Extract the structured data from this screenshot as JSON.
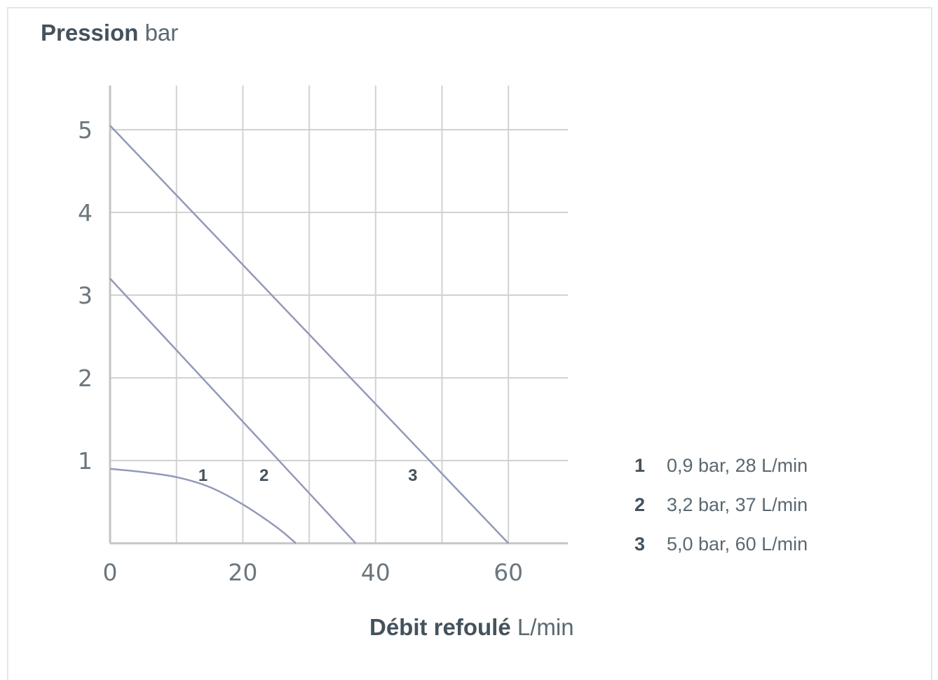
{
  "header": {
    "ylabel_bold": "Pression",
    "ylabel_unit": "bar",
    "xlabel_bold": "Débit refoulé",
    "xlabel_unit": "L/min"
  },
  "legend": [
    {
      "key": "1",
      "text": "0,9 bar, 28 L/min"
    },
    {
      "key": "2",
      "text": "3,2 bar, 37 L/min"
    },
    {
      "key": "3",
      "text": "5,0 bar, 60 L/min"
    }
  ],
  "colors": {
    "curve": "#9399b8",
    "grid": "#d2d2d2",
    "axis": "#c4c4c4"
  },
  "chart_data": {
    "type": "line",
    "title": "",
    "xlabel": "Débit refoulé L/min",
    "ylabel": "Pression bar",
    "xlim": [
      0,
      69
    ],
    "ylim": [
      0,
      5.5
    ],
    "xticks": [
      0,
      20,
      40,
      60
    ],
    "yticks": [
      1,
      2,
      3,
      4,
      5
    ],
    "grid": true,
    "series": [
      {
        "name": "1",
        "x": [
          0,
          5,
          10,
          15,
          20,
          25,
          28
        ],
        "y": [
          0.9,
          0.86,
          0.8,
          0.68,
          0.47,
          0.2,
          0
        ]
      },
      {
        "name": "2",
        "x": [
          0,
          37
        ],
        "y": [
          3.2,
          0
        ]
      },
      {
        "name": "3",
        "x": [
          0,
          60
        ],
        "y": [
          5.05,
          0
        ]
      }
    ],
    "curve_labels": [
      {
        "text": "1",
        "x": 14,
        "y": 0.82
      },
      {
        "text": "2",
        "x": 23.2,
        "y": 0.82
      },
      {
        "text": "3",
        "x": 45.6,
        "y": 0.82
      }
    ]
  }
}
